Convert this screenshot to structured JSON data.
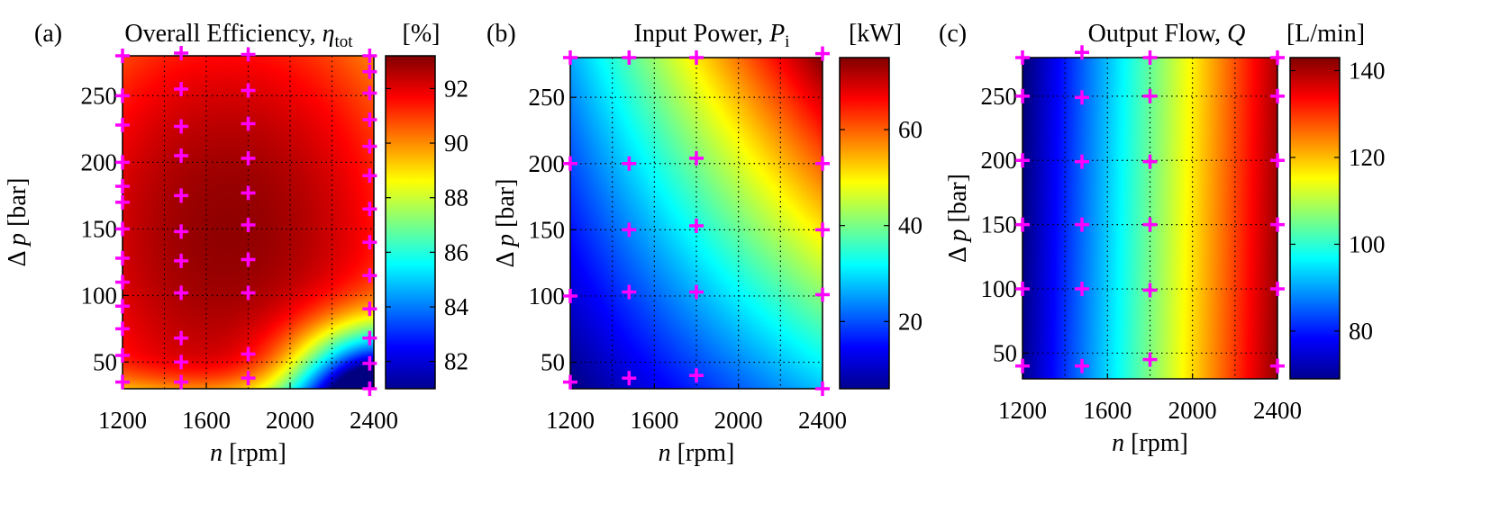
{
  "chart_data": [
    {
      "type": "heatmap",
      "panel_label": "(a)",
      "title": "Overall Efficiency,",
      "symbol": "η",
      "symbol_sub": "tot",
      "unit": "[%]",
      "xlabel_sym": "n",
      "xlabel": "[rpm]",
      "ylabel_sym": "Δ p",
      "ylabel": "[bar]",
      "xlim": [
        1200,
        2400
      ],
      "ylim": [
        30,
        280
      ],
      "xticks": [
        1200,
        1600,
        2000,
        2400
      ],
      "yticks": [
        50,
        100,
        150,
        200,
        250
      ],
      "colorbar_ticks": [
        82,
        84,
        86,
        88,
        90,
        92
      ],
      "clim": [
        81,
        93.2
      ],
      "grid": true,
      "colormap": "jet",
      "field": "efficiency map peaking near 93% around n=1700 rpm, Δp=150 bar; drops to ~81-84% at high speed and low pressure",
      "measurement_points": [
        [
          1200,
          35
        ],
        [
          1200,
          55
        ],
        [
          1200,
          75
        ],
        [
          1200,
          92
        ],
        [
          1200,
          110
        ],
        [
          1200,
          128
        ],
        [
          1200,
          150
        ],
        [
          1200,
          170
        ],
        [
          1200,
          182
        ],
        [
          1200,
          200
        ],
        [
          1200,
          228
        ],
        [
          1200,
          250
        ],
        [
          1200,
          280
        ],
        [
          1480,
          35
        ],
        [
          1480,
          50
        ],
        [
          1480,
          68
        ],
        [
          1480,
          102
        ],
        [
          1480,
          126
        ],
        [
          1480,
          148
        ],
        [
          1480,
          175
        ],
        [
          1480,
          205
        ],
        [
          1480,
          227
        ],
        [
          1480,
          255
        ],
        [
          1480,
          282
        ],
        [
          1800,
          38
        ],
        [
          1800,
          56
        ],
        [
          1800,
          102
        ],
        [
          1800,
          127
        ],
        [
          1800,
          153
        ],
        [
          1800,
          177
        ],
        [
          1800,
          203
        ],
        [
          1800,
          229
        ],
        [
          1800,
          254
        ],
        [
          1800,
          281
        ],
        [
          2380,
          30
        ],
        [
          2380,
          49
        ],
        [
          2380,
          68
        ],
        [
          2380,
          90
        ],
        [
          2380,
          115
        ],
        [
          2380,
          140
        ],
        [
          2380,
          165
        ],
        [
          2380,
          190
        ],
        [
          2380,
          212
        ],
        [
          2380,
          232
        ],
        [
          2380,
          252
        ],
        [
          2380,
          268
        ],
        [
          2380,
          280
        ]
      ]
    },
    {
      "type": "heatmap",
      "panel_label": "(b)",
      "title": "Input Power,",
      "symbol": "P",
      "symbol_sub": "i",
      "unit": "[kW]",
      "xlabel_sym": "n",
      "xlabel": "[rpm]",
      "ylabel_sym": "Δ p",
      "ylabel": "[bar]",
      "xlim": [
        1200,
        2400
      ],
      "ylim": [
        30,
        280
      ],
      "xticks": [
        1200,
        1600,
        2000,
        2400
      ],
      "yticks": [
        50,
        100,
        150,
        200,
        250
      ],
      "colorbar_ticks": [
        20,
        40,
        60
      ],
      "clim": [
        6,
        75
      ],
      "grid": true,
      "colormap": "jet",
      "field": "power rises with speed and pressure, from ~7 kW at (1200 rpm, 30 bar) to ~75 kW at (2400 rpm, 280 bar)",
      "measurement_points": [
        [
          1200,
          35
        ],
        [
          1200,
          100
        ],
        [
          1200,
          200
        ],
        [
          1200,
          280
        ],
        [
          1480,
          38
        ],
        [
          1480,
          103
        ],
        [
          1480,
          150
        ],
        [
          1480,
          200
        ],
        [
          1480,
          280
        ],
        [
          1800,
          40
        ],
        [
          1800,
          103
        ],
        [
          1800,
          153
        ],
        [
          1800,
          204
        ],
        [
          1800,
          280
        ],
        [
          2400,
          30
        ],
        [
          2400,
          101
        ],
        [
          2400,
          150
        ],
        [
          2400,
          200
        ],
        [
          2400,
          283
        ]
      ]
    },
    {
      "type": "heatmap",
      "panel_label": "(c)",
      "title": "Output Flow,",
      "symbol": "Q",
      "symbol_sub": "",
      "unit": "[L/min]",
      "xlabel_sym": "n",
      "xlabel": "[rpm]",
      "ylabel_sym": "Δ p",
      "ylabel": "[bar]",
      "xlim": [
        1200,
        2400
      ],
      "ylim": [
        30,
        280
      ],
      "xticks": [
        1200,
        1600,
        2000,
        2400
      ],
      "yticks": [
        50,
        100,
        150,
        200,
        250
      ],
      "colorbar_ticks": [
        80,
        100,
        120,
        140
      ],
      "clim": [
        69,
        143
      ],
      "grid": true,
      "colormap": "jet",
      "field": "flow depends almost only on speed, increasing linearly from ~70 L/min at 1200 rpm to ~142 L/min at 2400 rpm",
      "measurement_points": [
        [
          1200,
          40
        ],
        [
          1200,
          100
        ],
        [
          1200,
          150
        ],
        [
          1200,
          200
        ],
        [
          1200,
          250
        ],
        [
          1200,
          280
        ],
        [
          1480,
          40
        ],
        [
          1480,
          100
        ],
        [
          1480,
          150
        ],
        [
          1480,
          199
        ],
        [
          1480,
          249
        ],
        [
          1480,
          285
        ],
        [
          1800,
          45
        ],
        [
          1800,
          99
        ],
        [
          1800,
          150
        ],
        [
          1800,
          199
        ],
        [
          1800,
          250
        ],
        [
          1800,
          280
        ],
        [
          2400,
          40
        ],
        [
          2400,
          100
        ],
        [
          2400,
          150
        ],
        [
          2400,
          200
        ],
        [
          2400,
          250
        ],
        [
          2400,
          280
        ]
      ]
    }
  ]
}
